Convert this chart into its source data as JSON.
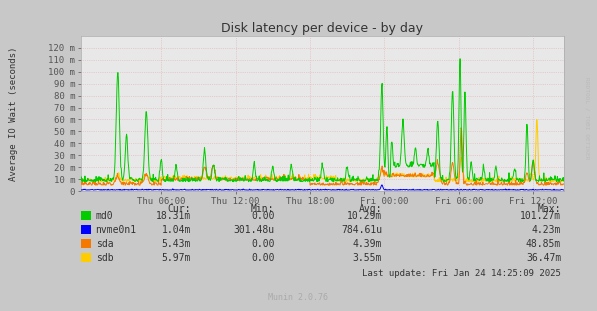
{
  "title": "Disk latency per device - by day",
  "ylabel": "Average IO Wait (seconds)",
  "background_color": "#c8c8c8",
  "plot_bg_color": "#e8e8e8",
  "series": {
    "md0": {
      "color": "#00cc00"
    },
    "nvme0n1": {
      "color": "#0000ff"
    },
    "sda": {
      "color": "#f57900"
    },
    "sdb": {
      "color": "#ffcc00"
    }
  },
  "xtick_labels": [
    "Thu 06:00",
    "Thu 12:00",
    "Thu 18:00",
    "Fri 00:00",
    "Fri 06:00",
    "Fri 12:00"
  ],
  "ytick_labels": [
    "0",
    "10 m",
    "20 m",
    "30 m",
    "40 m",
    "50 m",
    "60 m",
    "70 m",
    "80 m",
    "90 m",
    "100 m",
    "110 m",
    "120 m"
  ],
  "ytick_values": [
    0,
    0.01,
    0.02,
    0.03,
    0.04,
    0.05,
    0.06,
    0.07,
    0.08,
    0.09,
    0.1,
    0.11,
    0.12
  ],
  "ymax": 0.13,
  "watermark": "RRDTOOL / TOBI OETIKER",
  "footer": "Munin 2.0.76",
  "last_update": "Last update: Fri Jan 24 14:25:09 2025",
  "legend": [
    {
      "name": "md0",
      "cur": "18.31m",
      "min": "0.00",
      "avg": "10.29m",
      "max": "101.27m"
    },
    {
      "name": "nvme0n1",
      "cur": "1.04m",
      "min": "301.48u",
      "avg": "784.61u",
      "max": "4.23m"
    },
    {
      "name": "sda",
      "cur": "5.43m",
      "min": "0.00",
      "avg": "4.39m",
      "max": "48.85m"
    },
    {
      "name": "sdb",
      "cur": "5.97m",
      "min": "0.00",
      "avg": "3.55m",
      "max": "36.47m"
    }
  ],
  "col_headers": [
    "Cur:",
    "Min:",
    "Avg:",
    "Max:"
  ]
}
